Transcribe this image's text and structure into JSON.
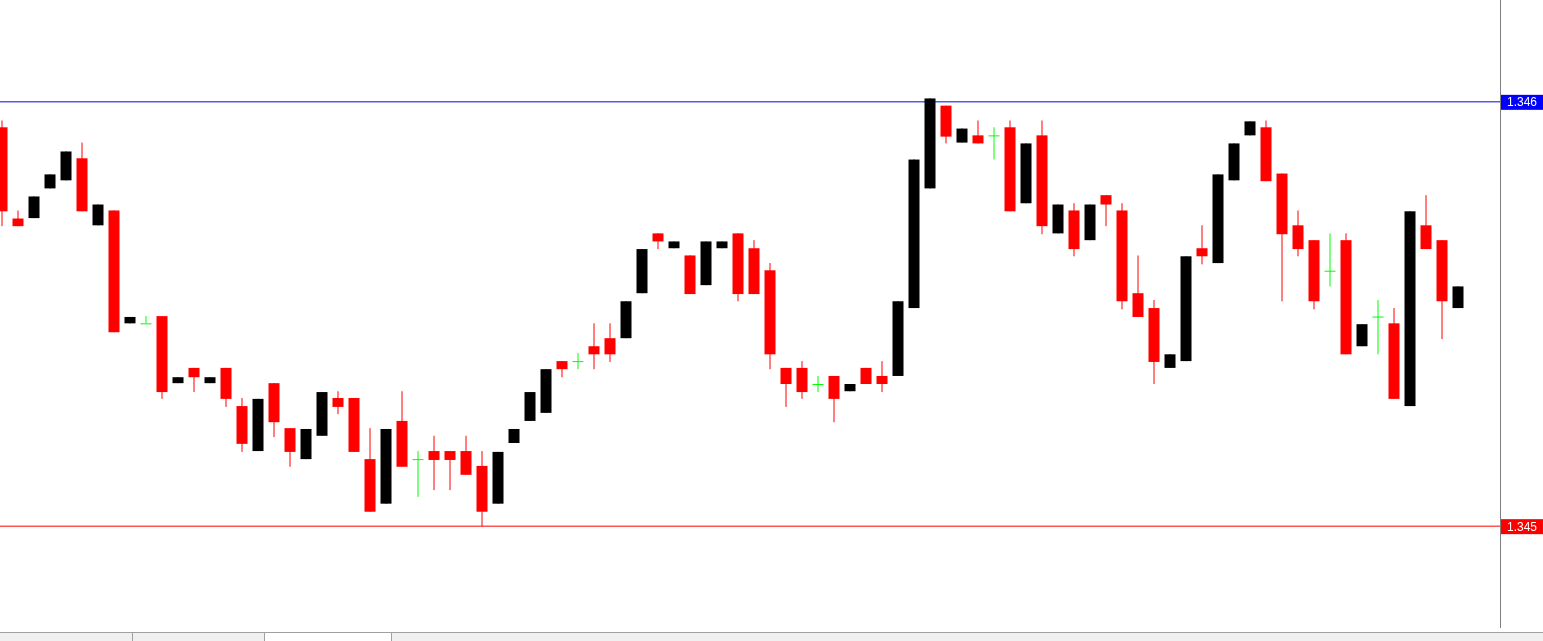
{
  "chart_data": {
    "type": "candlestick",
    "categories": [
      null,
      null,
      null,
      null,
      null,
      null,
      null,
      null,
      null,
      null,
      null,
      null,
      null,
      null,
      null,
      null,
      null,
      null,
      null,
      null,
      null,
      null,
      null,
      null,
      null,
      null,
      null,
      null,
      null,
      null,
      null,
      null,
      null,
      null,
      null,
      null,
      null,
      null,
      null,
      null,
      null,
      null,
      null,
      null,
      null,
      null,
      null,
      null,
      null,
      null,
      null,
      null,
      null,
      null,
      null,
      null,
      null,
      null,
      null,
      null,
      null,
      null,
      null,
      null,
      null,
      null,
      null,
      null,
      null,
      null,
      null,
      null,
      null,
      null,
      null,
      null,
      null,
      null,
      null,
      null,
      null,
      null,
      null,
      null,
      null,
      null,
      null,
      null,
      null,
      null,
      null,
      null
    ],
    "ohlc": [
      [
        1.34594,
        1.345956,
        1.345707,
        1.345742
      ],
      [
        1.345725,
        1.345744,
        1.345707,
        1.345707
      ],
      [
        1.345726,
        1.345777,
        1.345726,
        1.345777
      ],
      [
        1.345796,
        1.345829,
        1.345796,
        1.345829
      ],
      [
        1.345815,
        1.345883,
        1.345815,
        1.345883
      ],
      [
        1.345867,
        1.345904,
        1.345742,
        1.345742
      ],
      [
        1.345709,
        1.345758,
        1.345709,
        1.345758
      ],
      [
        1.345744,
        1.345744,
        1.345457,
        1.345457
      ],
      [
        1.345478,
        1.345493,
        1.345478,
        1.345493
      ],
      [
        1.345478,
        1.345495,
        1.345478,
        1.345478
      ],
      [
        1.345495,
        1.345495,
        1.3453,
        1.345316
      ],
      [
        1.345337,
        1.345351,
        1.345337,
        1.345351
      ],
      [
        1.345373,
        1.345373,
        1.345316,
        1.345351
      ],
      [
        1.345337,
        1.345351,
        1.345337,
        1.345351
      ],
      [
        1.345373,
        1.345373,
        1.345281,
        1.3453
      ],
      [
        1.345283,
        1.345302,
        1.345175,
        1.345194
      ],
      [
        1.345177,
        1.3453,
        1.345177,
        1.3453
      ],
      [
        1.345337,
        1.345337,
        1.34521,
        1.345245
      ],
      [
        1.345231,
        1.345231,
        1.34514,
        1.345175
      ],
      [
        1.345158,
        1.345229,
        1.345158,
        1.345229
      ],
      [
        1.345213,
        1.345316,
        1.345213,
        1.345316
      ],
      [
        1.345302,
        1.345318,
        1.345264,
        1.345281
      ],
      [
        1.345302,
        1.345302,
        1.345175,
        1.345175
      ],
      [
        1.345158,
        1.345231,
        1.345034,
        1.345034
      ],
      [
        1.345053,
        1.345229,
        1.345053,
        1.345229
      ],
      [
        1.345248,
        1.345318,
        1.34514,
        1.34514
      ],
      [
        1.345158,
        1.345177,
        1.345069,
        1.345158
      ],
      [
        1.345177,
        1.345213,
        1.345085,
        1.345156
      ],
      [
        1.345177,
        1.345177,
        1.345085,
        1.345156
      ],
      [
        1.345177,
        1.345213,
        1.345121,
        1.345121
      ],
      [
        1.345142,
        1.345177,
        1.345,
        1.345034
      ],
      [
        1.345053,
        1.345175,
        1.345053,
        1.345175
      ],
      [
        1.345196,
        1.345229,
        1.345196,
        1.345229
      ],
      [
        1.345248,
        1.345316,
        1.345248,
        1.345316
      ],
      [
        1.345267,
        1.34537,
        1.345267,
        1.34537
      ],
      [
        1.345389,
        1.345389,
        1.345351,
        1.34537
      ],
      [
        1.345389,
        1.345408,
        1.34537,
        1.345389
      ],
      [
        1.345424,
        1.345478,
        1.34537,
        1.345405
      ],
      [
        1.345443,
        1.345478,
        1.345387,
        1.345405
      ],
      [
        1.345443,
        1.34553,
        1.345443,
        1.34553
      ],
      [
        1.345549,
        1.345653,
        1.345549,
        1.345653
      ],
      [
        1.34569,
        1.34569,
        1.345653,
        1.345671
      ],
      [
        1.345655,
        1.345671,
        1.345655,
        1.345671
      ],
      [
        1.345638,
        1.345638,
        1.345547,
        1.345547
      ],
      [
        1.345568,
        1.345671,
        1.345568,
        1.345671
      ],
      [
        1.345655,
        1.345671,
        1.345655,
        1.345671
      ],
      [
        1.34569,
        1.34569,
        1.34553,
        1.345547
      ],
      [
        1.345655,
        1.345674,
        1.345547,
        1.345547
      ],
      [
        1.345603,
        1.34562,
        1.34537,
        1.345405
      ],
      [
        1.345373,
        1.345373,
        1.345281,
        1.345335
      ],
      [
        1.345373,
        1.345389,
        1.3453,
        1.345316
      ],
      [
        1.345335,
        1.345354,
        1.345316,
        1.345335
      ],
      [
        1.345354,
        1.345354,
        1.345245,
        1.3453
      ],
      [
        1.345318,
        1.345335,
        1.345318,
        1.345335
      ],
      [
        1.345373,
        1.345373,
        1.345335,
        1.345335
      ],
      [
        1.345354,
        1.345389,
        1.345316,
        1.345335
      ],
      [
        1.345354,
        1.34553,
        1.345354,
        1.34553
      ],
      [
        1.345514,
        1.345864,
        1.345514,
        1.345864
      ],
      [
        1.345796,
        1.346008,
        1.345796,
        1.346008
      ],
      [
        1.345991,
        1.345991,
        1.345902,
        1.345918
      ],
      [
        1.345904,
        1.345937,
        1.345904,
        1.345937
      ],
      [
        1.345921,
        1.345956,
        1.345902,
        1.345902
      ],
      [
        1.345921,
        1.34594,
        1.345864,
        1.345921
      ],
      [
        1.34594,
        1.345956,
        1.345742,
        1.345742
      ],
      [
        1.345761,
        1.345902,
        1.345761,
        1.345902
      ],
      [
        1.345921,
        1.345956,
        1.345688,
        1.345707
      ],
      [
        1.34569,
        1.345758,
        1.34569,
        1.345758
      ],
      [
        1.345744,
        1.345761,
        1.345636,
        1.345653
      ],
      [
        1.345674,
        1.345758,
        1.345674,
        1.345758
      ],
      [
        1.34578,
        1.34578,
        1.345707,
        1.345758
      ],
      [
        1.345744,
        1.345761,
        1.345511,
        1.34553
      ],
      [
        1.345549,
        1.345638,
        1.345493,
        1.345493
      ],
      [
        1.345514,
        1.345533,
        1.345335,
        1.345387
      ],
      [
        1.345373,
        1.345405,
        1.345373,
        1.345405
      ],
      [
        1.345389,
        1.345636,
        1.345389,
        1.345636
      ],
      [
        1.345655,
        1.345709,
        1.345617,
        1.345636
      ],
      [
        1.34562,
        1.345829,
        1.34562,
        1.345829
      ],
      [
        1.345815,
        1.345902,
        1.345815,
        1.345902
      ],
      [
        1.345921,
        1.345954,
        1.345921,
        1.345954
      ],
      [
        1.34594,
        1.345956,
        1.345813,
        1.345813
      ],
      [
        1.345831,
        1.345831,
        1.34553,
        1.345688
      ],
      [
        1.345709,
        1.345744,
        1.345636,
        1.345653
      ],
      [
        1.345674,
        1.345674,
        1.345511,
        1.34553
      ],
      [
        1.345602,
        1.34569,
        1.345565,
        1.345602
      ],
      [
        1.345674,
        1.34569,
        1.345405,
        1.345405
      ],
      [
        1.345424,
        1.345476,
        1.345424,
        1.345476
      ],
      [
        1.345494,
        1.345533,
        1.345405,
        1.345494
      ],
      [
        1.345478,
        1.345514,
        1.3453,
        1.3453
      ],
      [
        1.345283,
        1.345742,
        1.345283,
        1.345742
      ],
      [
        1.345709,
        1.34578,
        1.345653,
        1.345653
      ],
      [
        1.345674,
        1.345674,
        1.345441,
        1.34553
      ],
      [
        1.345514,
        1.345565,
        1.345514,
        1.345565
      ]
    ],
    "colors": [
      "#ff0000",
      "#ff0000",
      "#000000",
      "#000000",
      "#000000",
      "#ff0000",
      "#000000",
      "#ff0000",
      "#000000",
      "#00ff00",
      "#ff0000",
      "#000000",
      "#ff0000",
      "#000000",
      "#ff0000",
      "#ff0000",
      "#000000",
      "#ff0000",
      "#ff0000",
      "#000000",
      "#000000",
      "#ff0000",
      "#ff0000",
      "#ff0000",
      "#000000",
      "#ff0000",
      "#00ff00",
      "#ff0000",
      "#ff0000",
      "#ff0000",
      "#ff0000",
      "#000000",
      "#000000",
      "#000000",
      "#000000",
      "#ff0000",
      "#00ff00",
      "#ff0000",
      "#ff0000",
      "#000000",
      "#000000",
      "#ff0000",
      "#000000",
      "#ff0000",
      "#000000",
      "#000000",
      "#ff0000",
      "#ff0000",
      "#ff0000",
      "#ff0000",
      "#ff0000",
      "#00ff00",
      "#ff0000",
      "#000000",
      "#ff0000",
      "#ff0000",
      "#000000",
      "#000000",
      "#000000",
      "#ff0000",
      "#000000",
      "#ff0000",
      "#00ff00",
      "#ff0000",
      "#000000",
      "#ff0000",
      "#000000",
      "#ff0000",
      "#000000",
      "#ff0000",
      "#ff0000",
      "#ff0000",
      "#ff0000",
      "#000000",
      "#000000",
      "#ff0000",
      "#000000",
      "#000000",
      "#000000",
      "#ff0000",
      "#ff0000",
      "#ff0000",
      "#ff0000",
      "#00ff00",
      "#ff0000",
      "#000000",
      "#00ff00",
      "#ff0000",
      "#000000",
      "#ff0000",
      "#ff0000",
      "#000000"
    ],
    "ylim": [
      1.34476,
      1.34624
    ],
    "yticks": [
      1.345,
      1.346
    ],
    "ref_lines": [
      {
        "axis": "y",
        "value": 1.346,
        "color": "#0000ff"
      },
      {
        "axis": "y",
        "value": 1.345,
        "color": "#ff0000"
      }
    ]
  }
}
